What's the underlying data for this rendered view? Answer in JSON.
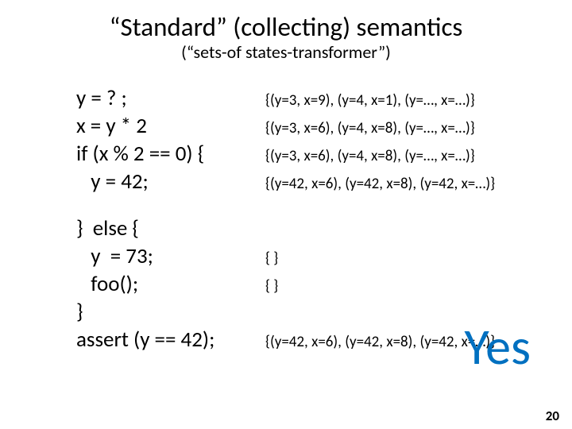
{
  "title": "“Standard” (collecting) semantics",
  "subtitle": "(“sets-of states-transformer”)",
  "rows": [
    {
      "code": "y = ? ;",
      "state": "{(y=3, x=9), (y=4, x=1), (y=…, x=…)}"
    },
    {
      "code": "x = y * 2",
      "state": "{(y=3, x=6), (y=4, x=8), (y=…, x=…)}"
    },
    {
      "code": "if (x % 2 == 0) {",
      "state": "{(y=3, x=6), (y=4, x=8), (y=…, x=…)}"
    },
    {
      "code": "   y = 42;",
      "state": "{(y=42, x=6), (y=42, x=8), (y=42, x=…)}"
    }
  ],
  "rows2": [
    {
      "code": "}  else {",
      "state": ""
    },
    {
      "code": "   y  = 73;",
      "state": "{ }"
    },
    {
      "code": "   foo();",
      "state": "{ }"
    },
    {
      "code": "}",
      "state": ""
    },
    {
      "code": "assert (y == 42);",
      "state": "{(y=42, x=6), (y=42, x=8), (y=42, x=…)}"
    }
  ],
  "yes": "Yes",
  "pagenum": "20",
  "colors": {
    "text": "#000000",
    "accent": "#0070c0",
    "background": "#ffffff"
  },
  "fonts": {
    "title_size": 33,
    "subtitle_size": 22,
    "code_size": 27,
    "state_size": 19,
    "yes_size": 64,
    "pagenum_size": 17
  }
}
